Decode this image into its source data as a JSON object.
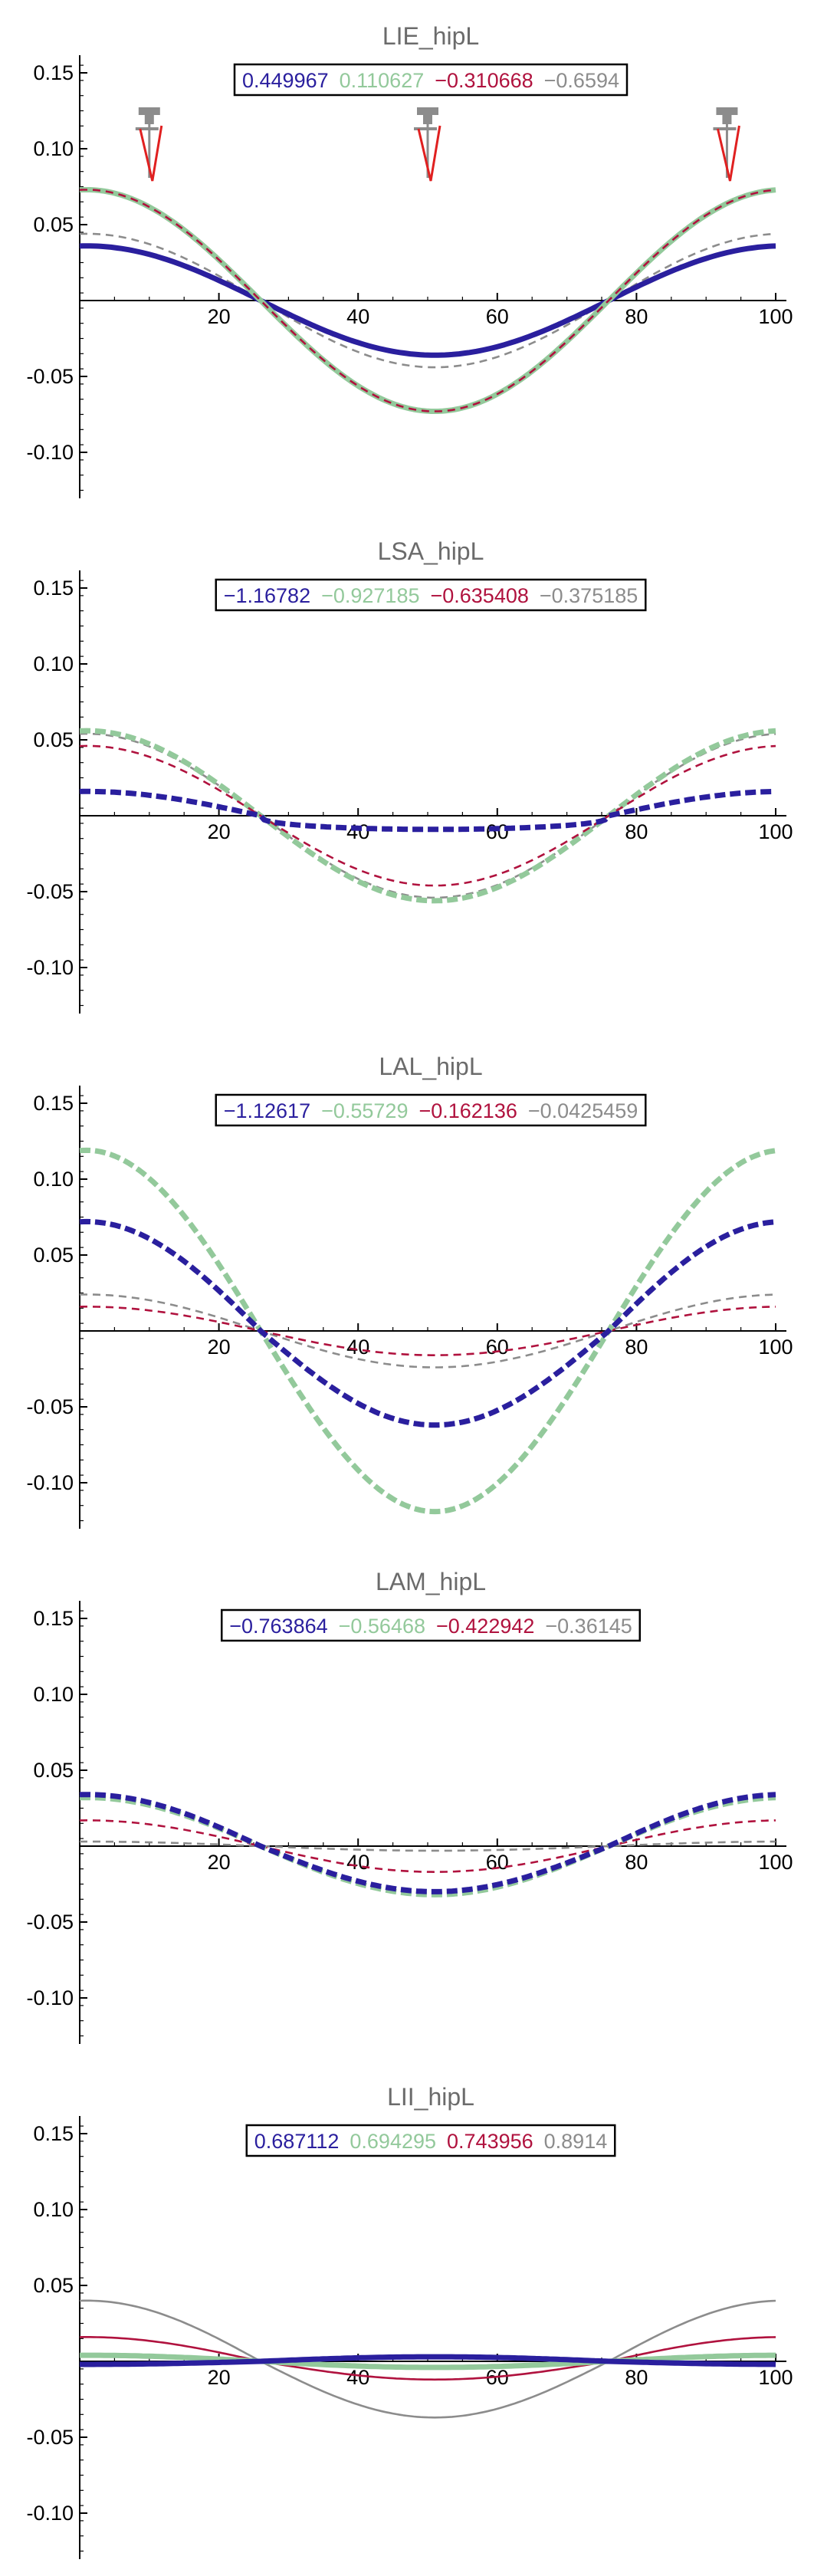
{
  "chart_data": [
    {
      "type": "line",
      "title": "LIE_hipL",
      "legend_values": [
        "0.449967",
        "0.110627",
        "−0.310668",
        "−0.6594"
      ],
      "legend_placement": "top-center",
      "xlim": [
        0,
        100
      ],
      "ylim": [
        -0.13,
        0.16
      ],
      "xticks": [
        "20",
        "40",
        "60",
        "80",
        "100"
      ],
      "yticks": [
        "0.15",
        "0.10",
        "0.05",
        "-0.05",
        "-0.10"
      ],
      "grid": false,
      "markers": [
        {
          "type": "gait-figure",
          "x": 10,
          "icon": "walking-figure-icon"
        },
        {
          "type": "gait-figure",
          "x": 50,
          "icon": "walking-figure-icon"
        },
        {
          "type": "gait-figure",
          "x": 93,
          "icon": "walking-figure-icon"
        }
      ],
      "series": [
        {
          "color": "#8c8c8c",
          "style": "dashed",
          "width": "thin",
          "amplitude": 0.044
        },
        {
          "color": "#2a1f9e",
          "style": "solid",
          "width": "thick",
          "amplitude": 0.036
        },
        {
          "color": "#93c99b",
          "style": "solid",
          "width": "thick",
          "amplitude": 0.073
        },
        {
          "color": "#b0123e",
          "style": "dashed",
          "width": "thin",
          "amplitude": 0.073
        }
      ]
    },
    {
      "type": "line",
      "title": "LSA_hipL",
      "legend_values": [
        "−1.16782",
        "−0.927185",
        "−0.635408",
        "−0.375185"
      ],
      "legend_placement": "top-center",
      "xlim": [
        0,
        100
      ],
      "ylim": [
        -0.13,
        0.16
      ],
      "xticks": [
        "20",
        "40",
        "60",
        "80",
        "100"
      ],
      "yticks": [
        "0.15",
        "0.10",
        "0.05",
        "-0.05",
        "-0.10"
      ],
      "grid": false,
      "series": [
        {
          "color": "#8c8c8c",
          "style": "dashed",
          "width": "thin",
          "amplitude": 0.054
        },
        {
          "color": "#93c99b",
          "style": "dashed",
          "width": "thick",
          "amplitude": 0.056
        },
        {
          "color": "#b0123e",
          "style": "dashed",
          "width": "thin",
          "amplitude": 0.046
        },
        {
          "color": "#2a1f9e",
          "style": "dashed",
          "width": "thick",
          "amplitude": 0.016,
          "flatten": 0.009
        }
      ]
    },
    {
      "type": "line",
      "title": "LAL_hipL",
      "legend_values": [
        "−1.12617",
        "−0.55729",
        "−0.162136",
        "−0.0425459"
      ],
      "legend_placement": "top-center",
      "xlim": [
        0,
        100
      ],
      "ylim": [
        -0.13,
        0.16
      ],
      "xticks": [
        "20",
        "40",
        "60",
        "80",
        "100"
      ],
      "yticks": [
        "0.15",
        "0.10",
        "0.05",
        "-0.05",
        "-0.10"
      ],
      "grid": false,
      "series": [
        {
          "color": "#8c8c8c",
          "style": "dashed",
          "width": "thin",
          "amplitude": 0.024
        },
        {
          "color": "#b0123e",
          "style": "dashed",
          "width": "thin",
          "amplitude": 0.016
        },
        {
          "color": "#93c99b",
          "style": "dashed",
          "width": "thick",
          "amplitude": 0.119
        },
        {
          "color": "#2a1f9e",
          "style": "dashed",
          "width": "thick",
          "amplitude": 0.072,
          "neg_amplitude": 0.062
        }
      ]
    },
    {
      "type": "line",
      "title": "LAM_hipL",
      "legend_values": [
        "−0.763864",
        "−0.56468",
        "−0.422942",
        "−0.36145"
      ],
      "legend_placement": "top-center",
      "xlim": [
        0,
        100
      ],
      "ylim": [
        -0.13,
        0.16
      ],
      "xticks": [
        "20",
        "40",
        "60",
        "80",
        "100"
      ],
      "yticks": [
        "0.15",
        "0.10",
        "0.05",
        "-0.05",
        "-0.10"
      ],
      "grid": false,
      "series": [
        {
          "color": "#8c8c8c",
          "style": "dashed",
          "width": "thin",
          "amplitude": 0.003
        },
        {
          "color": "#b0123e",
          "style": "dashed",
          "width": "thin",
          "amplitude": 0.017
        },
        {
          "color": "#93c99b",
          "style": "dashed",
          "width": "thick",
          "amplitude": 0.032
        },
        {
          "color": "#2a1f9e",
          "style": "dashed",
          "width": "thick",
          "amplitude": 0.034,
          "neg_amplitude": 0.03
        }
      ]
    },
    {
      "type": "line",
      "title": "LII_hipL",
      "legend_values": [
        "0.687112",
        "0.694295",
        "0.743956",
        "0.8914"
      ],
      "legend_placement": "top-center",
      "xlim": [
        0,
        100
      ],
      "ylim": [
        -0.13,
        0.16
      ],
      "xticks": [
        "20",
        "40",
        "60",
        "80",
        "100"
      ],
      "yticks": [
        "0.15",
        "0.10",
        "0.05",
        "-0.05",
        "-0.10"
      ],
      "grid": false,
      "series": [
        {
          "color": "#8c8c8c",
          "style": "solid",
          "width": "thin",
          "amplitude": 0.04,
          "neg_amplitude": 0.037
        },
        {
          "color": "#b0123e",
          "style": "solid",
          "width": "thin",
          "amplitude": 0.016,
          "neg_amplitude": 0.012
        },
        {
          "color": "#93c99b",
          "style": "solid",
          "width": "thick",
          "amplitude": 0.004
        },
        {
          "color": "#2a1f9e",
          "style": "solid",
          "width": "thick",
          "amplitude": -0.002,
          "neg_amplitude": -0.003
        }
      ]
    }
  ],
  "legend_colors": [
    "#2a1f9e",
    "#93c99b",
    "#b0123e",
    "#8c8c8c"
  ]
}
